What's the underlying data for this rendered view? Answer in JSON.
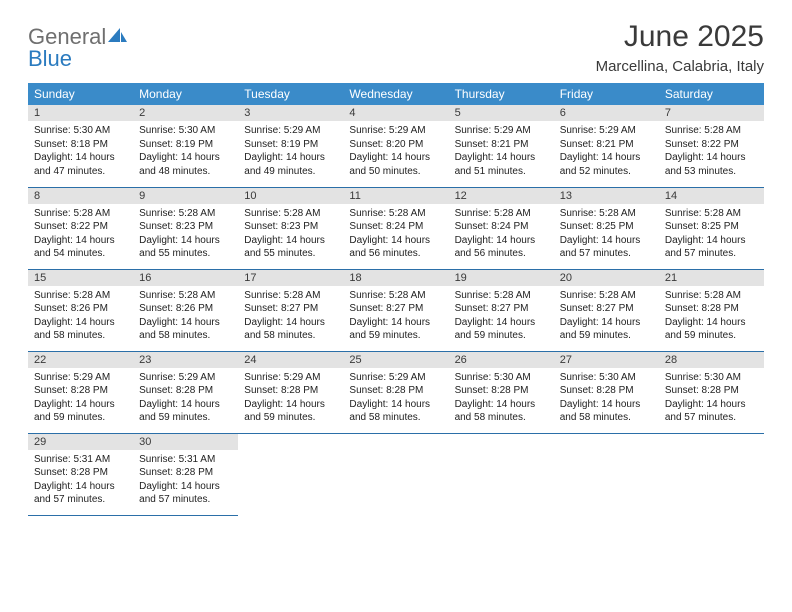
{
  "logo": {
    "text_gray": "General",
    "text_blue": "Blue",
    "sail_color": "#2b7bbf"
  },
  "title": "June 2025",
  "location": "Marcellina, Calabria, Italy",
  "colors": {
    "header_bg": "#3a8bc9",
    "header_fg": "#ffffff",
    "daynum_bg": "#e3e3e3",
    "week_divider": "#2b6fa8",
    "text": "#222222",
    "title_color": "#3a3a3a"
  },
  "day_headers": [
    "Sunday",
    "Monday",
    "Tuesday",
    "Wednesday",
    "Thursday",
    "Friday",
    "Saturday"
  ],
  "weeks": [
    [
      {
        "n": "1",
        "sunrise": "5:30 AM",
        "sunset": "8:18 PM",
        "dl_h": "14",
        "dl_m": "47"
      },
      {
        "n": "2",
        "sunrise": "5:30 AM",
        "sunset": "8:19 PM",
        "dl_h": "14",
        "dl_m": "48"
      },
      {
        "n": "3",
        "sunrise": "5:29 AM",
        "sunset": "8:19 PM",
        "dl_h": "14",
        "dl_m": "49"
      },
      {
        "n": "4",
        "sunrise": "5:29 AM",
        "sunset": "8:20 PM",
        "dl_h": "14",
        "dl_m": "50"
      },
      {
        "n": "5",
        "sunrise": "5:29 AM",
        "sunset": "8:21 PM",
        "dl_h": "14",
        "dl_m": "51"
      },
      {
        "n": "6",
        "sunrise": "5:29 AM",
        "sunset": "8:21 PM",
        "dl_h": "14",
        "dl_m": "52"
      },
      {
        "n": "7",
        "sunrise": "5:28 AM",
        "sunset": "8:22 PM",
        "dl_h": "14",
        "dl_m": "53"
      }
    ],
    [
      {
        "n": "8",
        "sunrise": "5:28 AM",
        "sunset": "8:22 PM",
        "dl_h": "14",
        "dl_m": "54"
      },
      {
        "n": "9",
        "sunrise": "5:28 AM",
        "sunset": "8:23 PM",
        "dl_h": "14",
        "dl_m": "55"
      },
      {
        "n": "10",
        "sunrise": "5:28 AM",
        "sunset": "8:23 PM",
        "dl_h": "14",
        "dl_m": "55"
      },
      {
        "n": "11",
        "sunrise": "5:28 AM",
        "sunset": "8:24 PM",
        "dl_h": "14",
        "dl_m": "56"
      },
      {
        "n": "12",
        "sunrise": "5:28 AM",
        "sunset": "8:24 PM",
        "dl_h": "14",
        "dl_m": "56"
      },
      {
        "n": "13",
        "sunrise": "5:28 AM",
        "sunset": "8:25 PM",
        "dl_h": "14",
        "dl_m": "57"
      },
      {
        "n": "14",
        "sunrise": "5:28 AM",
        "sunset": "8:25 PM",
        "dl_h": "14",
        "dl_m": "57"
      }
    ],
    [
      {
        "n": "15",
        "sunrise": "5:28 AM",
        "sunset": "8:26 PM",
        "dl_h": "14",
        "dl_m": "58"
      },
      {
        "n": "16",
        "sunrise": "5:28 AM",
        "sunset": "8:26 PM",
        "dl_h": "14",
        "dl_m": "58"
      },
      {
        "n": "17",
        "sunrise": "5:28 AM",
        "sunset": "8:27 PM",
        "dl_h": "14",
        "dl_m": "58"
      },
      {
        "n": "18",
        "sunrise": "5:28 AM",
        "sunset": "8:27 PM",
        "dl_h": "14",
        "dl_m": "59"
      },
      {
        "n": "19",
        "sunrise": "5:28 AM",
        "sunset": "8:27 PM",
        "dl_h": "14",
        "dl_m": "59"
      },
      {
        "n": "20",
        "sunrise": "5:28 AM",
        "sunset": "8:27 PM",
        "dl_h": "14",
        "dl_m": "59"
      },
      {
        "n": "21",
        "sunrise": "5:28 AM",
        "sunset": "8:28 PM",
        "dl_h": "14",
        "dl_m": "59"
      }
    ],
    [
      {
        "n": "22",
        "sunrise": "5:29 AM",
        "sunset": "8:28 PM",
        "dl_h": "14",
        "dl_m": "59"
      },
      {
        "n": "23",
        "sunrise": "5:29 AM",
        "sunset": "8:28 PM",
        "dl_h": "14",
        "dl_m": "59"
      },
      {
        "n": "24",
        "sunrise": "5:29 AM",
        "sunset": "8:28 PM",
        "dl_h": "14",
        "dl_m": "59"
      },
      {
        "n": "25",
        "sunrise": "5:29 AM",
        "sunset": "8:28 PM",
        "dl_h": "14",
        "dl_m": "58"
      },
      {
        "n": "26",
        "sunrise": "5:30 AM",
        "sunset": "8:28 PM",
        "dl_h": "14",
        "dl_m": "58"
      },
      {
        "n": "27",
        "sunrise": "5:30 AM",
        "sunset": "8:28 PM",
        "dl_h": "14",
        "dl_m": "58"
      },
      {
        "n": "28",
        "sunrise": "5:30 AM",
        "sunset": "8:28 PM",
        "dl_h": "14",
        "dl_m": "57"
      }
    ],
    [
      {
        "n": "29",
        "sunrise": "5:31 AM",
        "sunset": "8:28 PM",
        "dl_h": "14",
        "dl_m": "57"
      },
      {
        "n": "30",
        "sunrise": "5:31 AM",
        "sunset": "8:28 PM",
        "dl_h": "14",
        "dl_m": "57"
      },
      null,
      null,
      null,
      null,
      null
    ]
  ],
  "labels": {
    "sunrise_prefix": "Sunrise: ",
    "sunset_prefix": "Sunset: ",
    "daylight_prefix": "Daylight: ",
    "hours_word": " hours",
    "and_word": "and ",
    "minutes_word": " minutes."
  }
}
